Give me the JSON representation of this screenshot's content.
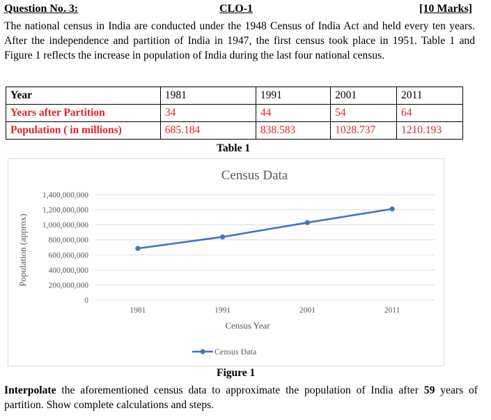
{
  "header": {
    "question": "Question No. 3:",
    "clo": "CLO-1",
    "marks": "[10 Marks]"
  },
  "intro": "The national census in India are conducted under the 1948 Census of India Act and held every ten years. After the independence and partition of India in 1947, the first census took place in 1951. Table 1 and Figure 1 reflects the increase in population of India during the last four national census.",
  "table": {
    "rows": [
      {
        "label": "Year",
        "cells": [
          "1981",
          "1991",
          "2001",
          "2011"
        ],
        "color": "#000000"
      },
      {
        "label": "Years after Partition",
        "cells": [
          "34",
          "44",
          "54",
          "64"
        ],
        "color": "#e0242a"
      },
      {
        "label": "Population ( in millions)",
        "cells": [
          "685.184",
          "838.583",
          "1028.737",
          "1210.193"
        ],
        "color": "#e0242a"
      }
    ],
    "caption": "Table 1"
  },
  "chart_data": {
    "type": "line",
    "title": "Census Data",
    "xlabel": "Census Year",
    "ylabel": "Population (approx)",
    "categories": [
      "1981",
      "1991",
      "2001",
      "2011"
    ],
    "series": [
      {
        "name": "Census Data",
        "values": [
          685184000,
          838583000,
          1028737000,
          1210193000
        ],
        "color": "#4472c4"
      }
    ],
    "ylim": [
      0,
      1400000000
    ],
    "yticks": [
      "0",
      "200,000,000",
      "400,000,000",
      "600,000,000",
      "800,000,000",
      "1,000,000,000",
      "1,200,000,000",
      "1,400,000,000"
    ],
    "grid": true,
    "legend": "bottom"
  },
  "figure_caption": "Figure 1",
  "question": {
    "bold_lead": "Interpolate",
    "text_before_num": " the aforementioned census data to approximate the population of India after ",
    "num": "59",
    "text_after_num": " years of partition. Show complete calculations and steps."
  }
}
